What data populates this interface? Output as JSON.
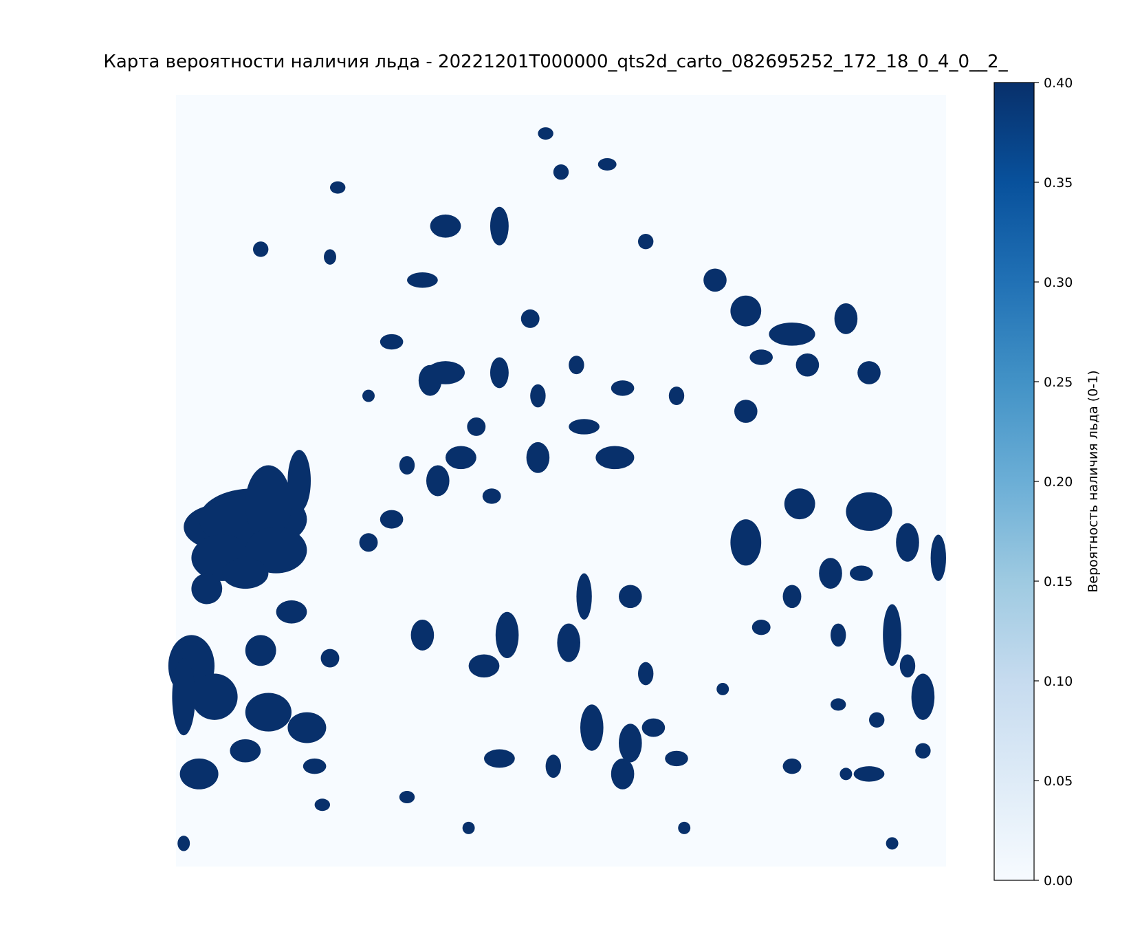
{
  "chart_data": {
    "type": "heatmap",
    "title": "Карта вероятности наличия льда - 20221201T000000_qts2d_carto_082695252_172_18_0_4_0__2_",
    "colormap": "Blues",
    "colors": {
      "low": "#f7fbff",
      "high": "#08306b"
    },
    "value_range": [
      0.0,
      0.4
    ],
    "grid": false,
    "axes_visible": false,
    "colorbar": {
      "label": "Вероятность наличия льда (0-1)",
      "ticks": [
        "0.00",
        "0.05",
        "0.10",
        "0.15",
        "0.20",
        "0.25",
        "0.30",
        "0.35",
        "0.40"
      ],
      "placement": "right"
    },
    "ice_blobs": [
      [
        0.06,
        0.56,
        0.05,
        0.03,
        0.4
      ],
      [
        0.1,
        0.55,
        0.07,
        0.04,
        0.4
      ],
      [
        0.06,
        0.6,
        0.04,
        0.03,
        0.4
      ],
      [
        0.12,
        0.53,
        0.03,
        0.05,
        0.4
      ],
      [
        0.13,
        0.59,
        0.04,
        0.03,
        0.4
      ],
      [
        0.09,
        0.62,
        0.03,
        0.02,
        0.4
      ],
      [
        0.04,
        0.64,
        0.02,
        0.02,
        0.4
      ],
      [
        0.16,
        0.5,
        0.015,
        0.04,
        0.4
      ],
      [
        0.02,
        0.74,
        0.03,
        0.04,
        0.4
      ],
      [
        0.05,
        0.78,
        0.03,
        0.03,
        0.4
      ],
      [
        0.01,
        0.78,
        0.015,
        0.05,
        0.4
      ],
      [
        0.12,
        0.8,
        0.03,
        0.025,
        0.4
      ],
      [
        0.17,
        0.82,
        0.025,
        0.02,
        0.4
      ],
      [
        0.03,
        0.88,
        0.025,
        0.02,
        0.4
      ],
      [
        0.09,
        0.85,
        0.02,
        0.015,
        0.4
      ],
      [
        0.18,
        0.87,
        0.015,
        0.01,
        0.4
      ],
      [
        0.11,
        0.72,
        0.02,
        0.02,
        0.4
      ],
      [
        0.2,
        0.73,
        0.012,
        0.012,
        0.4
      ],
      [
        0.15,
        0.67,
        0.02,
        0.015,
        0.4
      ],
      [
        0.35,
        0.36,
        0.025,
        0.015,
        0.4
      ],
      [
        0.33,
        0.37,
        0.015,
        0.02,
        0.4
      ],
      [
        0.42,
        0.36,
        0.012,
        0.02,
        0.4
      ],
      [
        0.35,
        0.17,
        0.02,
        0.015,
        0.4
      ],
      [
        0.32,
        0.24,
        0.02,
        0.01,
        0.4
      ],
      [
        0.42,
        0.17,
        0.012,
        0.025,
        0.4
      ],
      [
        0.28,
        0.55,
        0.015,
        0.012,
        0.4
      ],
      [
        0.37,
        0.47,
        0.02,
        0.015,
        0.4
      ],
      [
        0.39,
        0.43,
        0.012,
        0.012,
        0.4
      ],
      [
        0.34,
        0.5,
        0.015,
        0.02,
        0.4
      ],
      [
        0.47,
        0.47,
        0.015,
        0.02,
        0.4
      ],
      [
        0.57,
        0.47,
        0.025,
        0.015,
        0.4
      ],
      [
        0.53,
        0.43,
        0.02,
        0.01,
        0.4
      ],
      [
        0.51,
        0.71,
        0.015,
        0.025,
        0.4
      ],
      [
        0.53,
        0.65,
        0.01,
        0.03,
        0.4
      ],
      [
        0.59,
        0.65,
        0.015,
        0.015,
        0.4
      ],
      [
        0.61,
        0.75,
        0.01,
        0.015,
        0.4
      ],
      [
        0.43,
        0.7,
        0.015,
        0.03,
        0.4
      ],
      [
        0.4,
        0.74,
        0.02,
        0.015,
        0.4
      ],
      [
        0.32,
        0.7,
        0.015,
        0.02,
        0.4
      ],
      [
        0.54,
        0.82,
        0.015,
        0.03,
        0.4
      ],
      [
        0.59,
        0.84,
        0.015,
        0.025,
        0.4
      ],
      [
        0.58,
        0.88,
        0.015,
        0.02,
        0.4
      ],
      [
        0.49,
        0.87,
        0.01,
        0.015,
        0.4
      ],
      [
        0.42,
        0.86,
        0.02,
        0.012,
        0.4
      ],
      [
        0.62,
        0.82,
        0.015,
        0.012,
        0.4
      ],
      [
        0.65,
        0.86,
        0.015,
        0.01,
        0.4
      ],
      [
        0.28,
        0.32,
        0.015,
        0.01,
        0.4
      ],
      [
        0.3,
        0.48,
        0.01,
        0.012,
        0.4
      ],
      [
        0.41,
        0.52,
        0.012,
        0.01,
        0.4
      ],
      [
        0.47,
        0.39,
        0.01,
        0.015,
        0.4
      ],
      [
        0.74,
        0.28,
        0.02,
        0.02,
        0.4
      ],
      [
        0.8,
        0.31,
        0.03,
        0.015,
        0.4
      ],
      [
        0.76,
        0.34,
        0.015,
        0.01,
        0.4
      ],
      [
        0.87,
        0.29,
        0.015,
        0.02,
        0.4
      ],
      [
        0.82,
        0.35,
        0.015,
        0.015,
        0.4
      ],
      [
        0.7,
        0.24,
        0.015,
        0.015,
        0.4
      ],
      [
        0.74,
        0.41,
        0.015,
        0.015,
        0.4
      ],
      [
        0.9,
        0.36,
        0.015,
        0.015,
        0.4
      ],
      [
        0.74,
        0.58,
        0.02,
        0.03,
        0.4
      ],
      [
        0.81,
        0.53,
        0.02,
        0.02,
        0.4
      ],
      [
        0.9,
        0.54,
        0.03,
        0.025,
        0.4
      ],
      [
        0.95,
        0.58,
        0.015,
        0.025,
        0.4
      ],
      [
        0.85,
        0.62,
        0.015,
        0.02,
        0.4
      ],
      [
        0.8,
        0.65,
        0.012,
        0.015,
        0.4
      ],
      [
        0.93,
        0.7,
        0.012,
        0.04,
        0.4
      ],
      [
        0.97,
        0.78,
        0.015,
        0.03,
        0.4
      ],
      [
        0.95,
        0.74,
        0.01,
        0.015,
        0.4
      ],
      [
        0.9,
        0.88,
        0.02,
        0.01,
        0.4
      ],
      [
        0.8,
        0.87,
        0.012,
        0.01,
        0.4
      ],
      [
        0.89,
        0.62,
        0.015,
        0.01,
        0.4
      ],
      [
        0.91,
        0.81,
        0.01,
        0.01,
        0.4
      ],
      [
        0.86,
        0.7,
        0.01,
        0.015,
        0.4
      ],
      [
        0.76,
        0.69,
        0.012,
        0.01,
        0.4
      ],
      [
        0.99,
        0.6,
        0.01,
        0.03,
        0.4
      ],
      [
        0.97,
        0.85,
        0.01,
        0.01,
        0.4
      ],
      [
        0.71,
        0.77,
        0.008,
        0.008,
        0.4
      ],
      [
        0.86,
        0.79,
        0.01,
        0.008,
        0.4
      ],
      [
        0.11,
        0.2,
        0.01,
        0.01,
        0.4
      ],
      [
        0.21,
        0.12,
        0.01,
        0.008,
        0.4
      ],
      [
        0.2,
        0.21,
        0.008,
        0.01,
        0.4
      ],
      [
        0.48,
        0.05,
        0.01,
        0.008,
        0.4
      ],
      [
        0.56,
        0.09,
        0.012,
        0.008,
        0.4
      ],
      [
        0.61,
        0.19,
        0.01,
        0.01,
        0.4
      ],
      [
        0.5,
        0.1,
        0.01,
        0.01,
        0.4
      ],
      [
        0.58,
        0.38,
        0.015,
        0.01,
        0.4
      ],
      [
        0.65,
        0.39,
        0.01,
        0.012,
        0.4
      ],
      [
        0.46,
        0.29,
        0.012,
        0.012,
        0.4
      ],
      [
        0.52,
        0.35,
        0.01,
        0.012,
        0.4
      ],
      [
        0.25,
        0.39,
        0.008,
        0.008,
        0.4
      ],
      [
        0.3,
        0.91,
        0.01,
        0.008,
        0.4
      ],
      [
        0.38,
        0.95,
        0.008,
        0.008,
        0.4
      ],
      [
        0.66,
        0.95,
        0.008,
        0.008,
        0.4
      ],
      [
        0.87,
        0.88,
        0.008,
        0.008,
        0.4
      ],
      [
        0.93,
        0.97,
        0.008,
        0.008,
        0.4
      ],
      [
        0.01,
        0.97,
        0.008,
        0.01,
        0.4
      ],
      [
        0.25,
        0.58,
        0.012,
        0.012,
        0.4
      ],
      [
        0.19,
        0.92,
        0.01,
        0.008,
        0.4
      ]
    ]
  }
}
